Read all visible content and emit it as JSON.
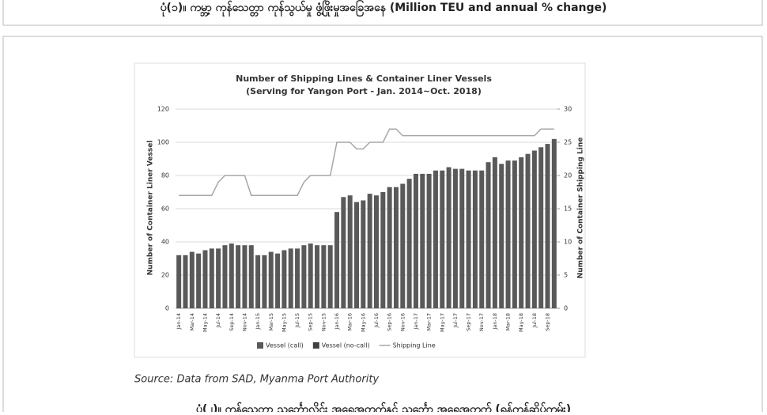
{
  "header_caption": "ပုံ(၁)။ ကမ္ဘာ့ ကုန်သေတ္တာ ကုန်သွယ်မှု ဖွံ့ဖြိုးမှုအခြေအနေ (Million TEU and annual % change)",
  "source": "Source: Data from SAD, Myanma Port Authority",
  "footer_caption": "ပုံ(၂)။ ကုန်သေတ္တာ သင်္ဘောလိုင်း အရေအတွက်နှင့် သင်္ဘော အရေအတွက် (ရန်ကုန်ဆိပ်ကမ်း)",
  "chart_data": {
    "type": "bar-line",
    "title": [
      "Number of Shipping Lines & Container Liner Vessels",
      "(Serving for Yangon Port - Jan. 2014~Oct. 2018)"
    ],
    "ylabel": "Number of Container Liner Vessel",
    "y2label": "Number of Container Shipping Line",
    "categories": [
      "Jan-14",
      null,
      "Mar-14",
      null,
      "May-14",
      null,
      "Jul-14",
      null,
      "Sep-14",
      null,
      "Nov-14",
      null,
      "Jan-15",
      null,
      "Mar-15",
      null,
      "May-15",
      null,
      "Jul-15",
      null,
      "Sep-15",
      null,
      "Nov-15",
      null,
      "Jan-16",
      null,
      "Mar-16",
      null,
      "May-16",
      null,
      "Jul-16",
      null,
      "Sep-16",
      null,
      "Nov-16",
      null,
      "Jan-17",
      null,
      "Mar-17",
      null,
      "May-17",
      null,
      "Jul-17",
      null,
      "Sep-17",
      null,
      "Nov-17",
      null,
      "Jan-18",
      null,
      "Mar-18",
      null,
      "May-18",
      null,
      "Jul-18",
      null,
      "Sep-18",
      null
    ],
    "series": [
      {
        "name": "Vessel (call)",
        "color": "#595959",
        "stack": true,
        "values": [
          32,
          32,
          34,
          33,
          35,
          36,
          36,
          38,
          39,
          38,
          38,
          38,
          32,
          32,
          34,
          33,
          35,
          36,
          36,
          38,
          39,
          38,
          38,
          38,
          58,
          67,
          68,
          64,
          65,
          69,
          68,
          70,
          73,
          73,
          75,
          78,
          81,
          81,
          81,
          83,
          83,
          85,
          84,
          84,
          83,
          83,
          83,
          88,
          91,
          87,
          89,
          89,
          91,
          93,
          95,
          97,
          99,
          102
        ]
      },
      {
        "name": "Vessel (no-call)",
        "color": "#404040",
        "stack": true,
        "values": [
          0,
          0,
          0,
          0,
          0,
          0,
          0,
          0,
          0,
          0,
          0,
          0,
          0,
          0,
          0,
          0,
          0,
          0,
          0,
          0,
          0,
          0,
          0,
          0,
          0,
          0,
          0,
          0,
          0,
          0,
          0,
          0,
          0,
          0,
          0,
          0,
          0,
          0,
          0,
          0,
          0,
          0,
          0,
          0,
          0,
          0,
          0,
          0,
          0,
          0,
          0,
          0,
          0,
          0,
          0,
          0,
          0,
          0
        ]
      },
      {
        "name": "Shipping Line",
        "color": "#a6a6a6",
        "axis": "y2",
        "line": true,
        "values": [
          17,
          17,
          17,
          17,
          17,
          17,
          19,
          20,
          20,
          20,
          20,
          17,
          17,
          17,
          17,
          17,
          17,
          17,
          17,
          19,
          20,
          20,
          20,
          20,
          25,
          25,
          25,
          24,
          24,
          25,
          25,
          25,
          27,
          27,
          26,
          26,
          26,
          26,
          26,
          26,
          26,
          26,
          26,
          26,
          26,
          26,
          26,
          26,
          26,
          26,
          26,
          26,
          26,
          26,
          26,
          27,
          27,
          27
        ]
      }
    ],
    "ylim": [
      0,
      120
    ],
    "yticks": [
      0,
      20,
      40,
      60,
      80,
      100,
      120
    ],
    "y2lim": [
      0,
      30
    ],
    "y2ticks": [
      0,
      5,
      10,
      15,
      20,
      25,
      30
    ],
    "grid": true
  }
}
